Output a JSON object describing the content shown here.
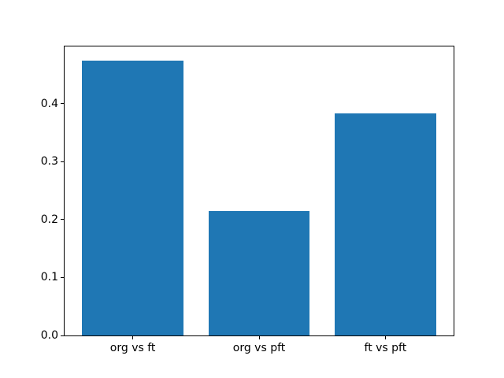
{
  "chart_data": {
    "type": "bar",
    "categories": [
      "org vs ft",
      "org vs pft",
      "ft vs pft"
    ],
    "values": [
      0.475,
      0.215,
      0.384
    ],
    "title": "",
    "xlabel": "",
    "ylabel": "",
    "ylim": [
      0,
      0.499
    ],
    "xlim": [
      -0.54,
      2.54
    ],
    "positions": [
      0,
      1,
      2
    ],
    "bar_width": 0.8,
    "yticks": [
      0.0,
      0.1,
      0.2,
      0.3,
      0.4
    ],
    "ytick_labels": [
      "0.0",
      "0.1",
      "0.2",
      "0.3",
      "0.4"
    ],
    "bar_color": "#1f77b4",
    "background_color": "#ffffff",
    "spine_color": "#000000",
    "grid": false,
    "legend": null
  }
}
